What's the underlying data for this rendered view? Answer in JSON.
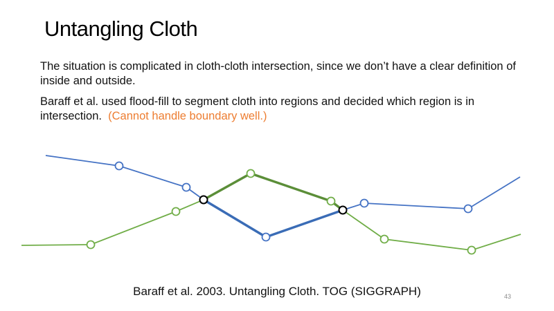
{
  "slide": {
    "title": "Untangling Cloth",
    "paragraph_1": "The situation is complicated in cloth-cloth intersection, since we don’t have a clear definition of inside and outside.",
    "paragraph_2_main": "Baraff et al. used flood-fill to segment cloth into regions and decided which region is in intersection.",
    "paragraph_2_note": "(Cannot handle boundary well.)",
    "citation": "Baraff et al. 2003. Untangling Cloth. TOG (SIGGRAPH)",
    "slide_number": "43"
  },
  "colors": {
    "blue_cloth": "#4472C4",
    "green_cloth": "#70AD47",
    "intersection_vertex": "#000000",
    "note_text": "#ED7D31"
  }
}
